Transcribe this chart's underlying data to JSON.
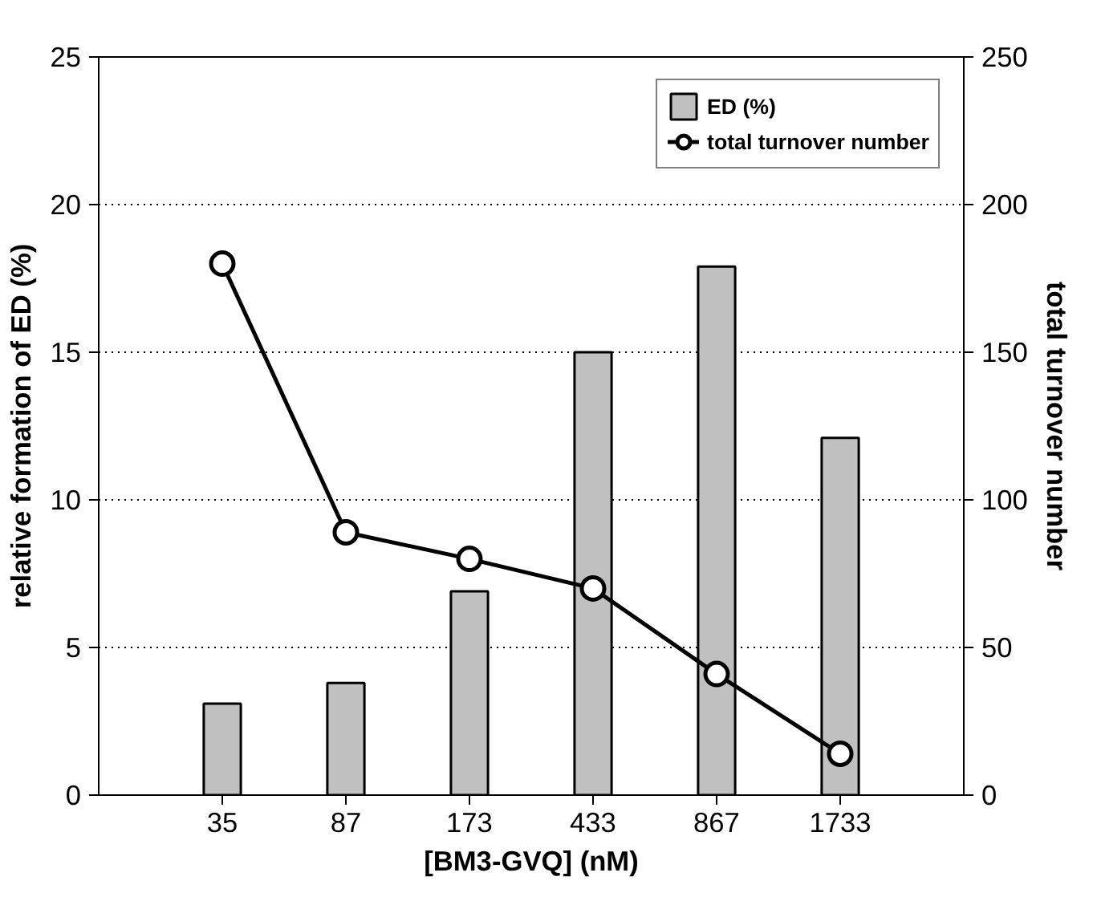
{
  "chart_data": {
    "type": "bar",
    "xlabel": "[BM3-GVQ] (nM)",
    "ylabel": "relative formation of ED (%)",
    "y2label": "total turnover number",
    "categories": [
      "35",
      "87",
      "173",
      "433",
      "867",
      "1733"
    ],
    "series": [
      {
        "name": "ED (%)",
        "color": "#c0c0c0",
        "values": [
          3.1,
          3.8,
          6.9,
          15.0,
          17.9,
          12.1
        ]
      },
      {
        "name": "total turnover number",
        "type": "line",
        "axis": "y2",
        "color": "#000000",
        "marker": "circle",
        "values": [
          180,
          89,
          80,
          70,
          41,
          14
        ]
      }
    ],
    "ylim": [
      0,
      25
    ],
    "yticks": [
      0,
      5,
      10,
      15,
      20,
      25
    ],
    "y2lim": [
      0,
      250
    ],
    "y2ticks": [
      0,
      50,
      100,
      150,
      200,
      250
    ],
    "grid": "y",
    "legend": "top right"
  }
}
